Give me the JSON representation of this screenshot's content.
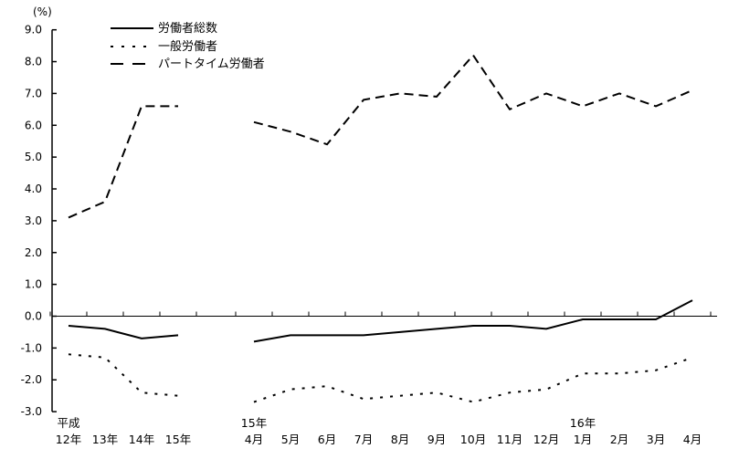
{
  "page": {
    "background_color": "#ffffff",
    "foreground_color": "#000000"
  },
  "chart_data": {
    "type": "line",
    "title": "",
    "unit_label": "(%)",
    "xlabel": "",
    "ylabel": "(%)",
    "ylim": [
      -3.0,
      9.0
    ],
    "y_tick_step": 1.0,
    "grid": false,
    "legend_position": "top-left",
    "axis_color": "#000000",
    "series_color": "#000000",
    "x_groups": [
      {
        "name": "annual",
        "categories": [
          {
            "top": "平成",
            "label": "12年"
          },
          {
            "top": "",
            "label": "13年"
          },
          {
            "top": "",
            "label": "14年"
          },
          {
            "top": "",
            "label": "15年"
          }
        ]
      },
      {
        "name": "monthly",
        "categories": [
          {
            "top": "15年",
            "label": "4月"
          },
          {
            "top": "",
            "label": "5月"
          },
          {
            "top": "",
            "label": "6月"
          },
          {
            "top": "",
            "label": "7月"
          },
          {
            "top": "",
            "label": "8月"
          },
          {
            "top": "",
            "label": "9月"
          },
          {
            "top": "",
            "label": "10月"
          },
          {
            "top": "",
            "label": "11月"
          },
          {
            "top": "",
            "label": "12月"
          },
          {
            "top": "16年",
            "label": "1月"
          },
          {
            "top": "",
            "label": "2月"
          },
          {
            "top": "",
            "label": "3月"
          },
          {
            "top": "",
            "label": "4月"
          }
        ]
      }
    ],
    "series": [
      {
        "name": "労働者総数",
        "line_style": "solid",
        "values_by_group": [
          [
            -0.3,
            -0.4,
            -0.7,
            -0.6
          ],
          [
            -0.8,
            -0.6,
            -0.6,
            -0.6,
            -0.5,
            -0.4,
            -0.3,
            -0.3,
            -0.4,
            -0.1,
            -0.1,
            -0.1,
            0.5
          ]
        ]
      },
      {
        "name": "一般労働者",
        "line_style": "dotted",
        "values_by_group": [
          [
            -1.2,
            -1.3,
            -2.4,
            -2.5
          ],
          [
            -2.7,
            -2.3,
            -2.2,
            -2.6,
            -2.5,
            -2.4,
            -2.7,
            -2.4,
            -2.3,
            -1.8,
            -1.8,
            -1.7,
            -1.3
          ]
        ]
      },
      {
        "name": "パートタイム労働者",
        "line_style": "dashed",
        "values_by_group": [
          [
            3.1,
            3.6,
            6.6,
            6.6
          ],
          [
            6.1,
            5.8,
            5.4,
            6.8,
            7.0,
            6.9,
            8.2,
            6.5,
            7.0,
            6.6,
            7.0,
            6.6,
            7.1
          ]
        ]
      }
    ]
  }
}
